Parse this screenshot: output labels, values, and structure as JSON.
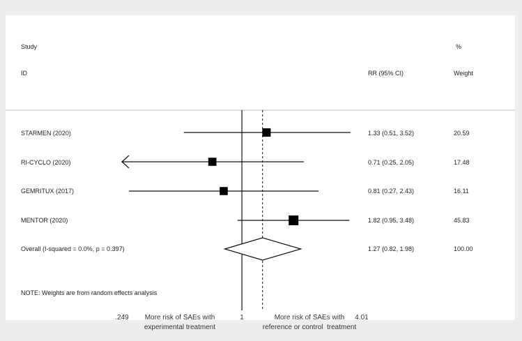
{
  "header": {
    "study": "Study",
    "id": "ID",
    "rr_ci": "RR (95% CI)",
    "percent": "%",
    "weight": "Weight"
  },
  "note": "NOTE: Weights are from random effects analysis",
  "chart_data": {
    "type": "forest",
    "x_scale": "log",
    "reference_line": 1,
    "xlim": [
      0.249,
      4.01
    ],
    "x_ticks": [
      ".249",
      "1",
      "4.01"
    ],
    "x_annotations": {
      "left": [
        "More risk of SAEs with",
        "experimental treatment"
      ],
      "right": [
        "More risk of SAEs with",
        "reference or control  treatment"
      ]
    },
    "studies": [
      {
        "label": "STARMEN (2020)",
        "rr": 1.33,
        "lo": 0.51,
        "hi": 3.52,
        "ci_text": "1.33 (0.51, 3.52)",
        "weight": 20.59,
        "weight_text": "20.59"
      },
      {
        "label": "RI-CYCLO (2020)",
        "rr": 0.71,
        "lo": 0.25,
        "hi": 2.05,
        "ci_text": "0.71 (0.25, 2.05)",
        "weight": 17.48,
        "weight_text": "17.48",
        "truncated_low": true
      },
      {
        "label": "GEMRITUX (2017)",
        "rr": 0.81,
        "lo": 0.27,
        "hi": 2.43,
        "ci_text": "0.81 (0.27, 2.43)",
        "weight": 16.11,
        "weight_text": "16.11"
      },
      {
        "label": "MENTOR (2020)",
        "rr": 1.82,
        "lo": 0.95,
        "hi": 3.48,
        "ci_text": "1.82 (0.95, 3.48)",
        "weight": 45.83,
        "weight_text": "45.83"
      }
    ],
    "overall": {
      "label": "Overall  (I-squared = 0.0%, p = 0.397)",
      "rr": 1.27,
      "lo": 0.82,
      "hi": 1.98,
      "ci_text": "1.27 (0.82, 1.98)",
      "weight_text": "100.00"
    }
  }
}
